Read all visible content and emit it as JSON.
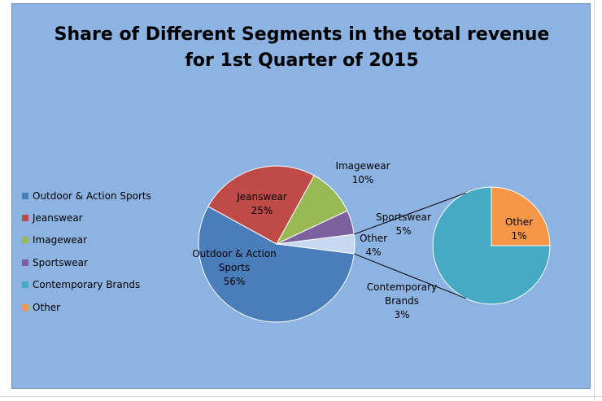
{
  "chart_data": {
    "type": "pie",
    "title_line1": "Share of Different Segments in the total revenue",
    "title_line2": "for 1st Quarter of 2015",
    "legend_position": "left",
    "categories": [
      "Outdoor & Action Sports",
      "Jeanswear",
      "Imagewear",
      "Sportswear",
      "Contemporary Brands",
      "Other"
    ],
    "colors": [
      "#4a7ebb",
      "#be4b48",
      "#98b954",
      "#7d60a0",
      "#46aac5",
      "#f79646"
    ],
    "main_pie": {
      "slices": [
        {
          "name": "Outdoor & Action Sports",
          "value": 56,
          "label_lines": [
            "Outdoor & Action",
            "Sports",
            "56%"
          ],
          "color": "#4a7ebb"
        },
        {
          "name": "Jeanswear",
          "value": 25,
          "label_lines": [
            "Jeanswear",
            "25%"
          ],
          "color": "#be4b48"
        },
        {
          "name": "Imagewear",
          "value": 10,
          "label_lines": [
            "Imagewear",
            "10%"
          ],
          "color": "#98b954"
        },
        {
          "name": "Sportswear",
          "value": 5,
          "label_lines": [
            "Sportswear",
            "5%"
          ],
          "color": "#7d60a0"
        },
        {
          "name": "Other",
          "value": 4,
          "label_lines": [
            "Other",
            "4%"
          ],
          "color": "#c6d9f1"
        }
      ]
    },
    "secondary_pie": {
      "slices": [
        {
          "name": "Contemporary Brands",
          "value": 3,
          "label_lines": [
            "Contemporary",
            "Brands",
            "3%"
          ],
          "color": "#46aac5"
        },
        {
          "name": "Other",
          "value": 1,
          "label_lines": [
            "Other",
            "1%"
          ],
          "color": "#f79646"
        }
      ]
    }
  }
}
